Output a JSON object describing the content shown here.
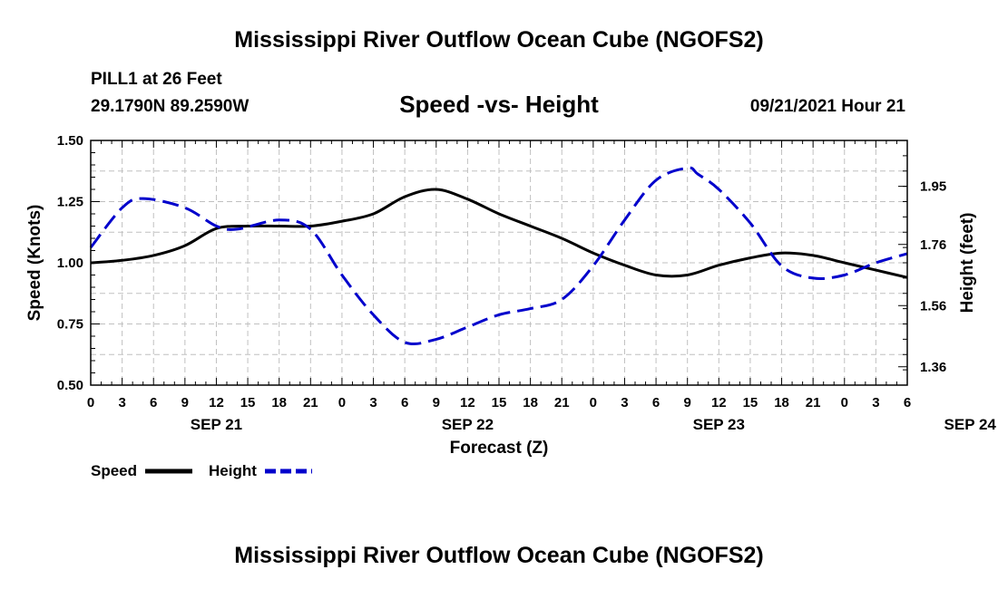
{
  "header": {
    "title": "Mississippi River Outflow Ocean Cube (NGOFS2)",
    "station": "PILL1 at 26 Feet",
    "coordinates": "29.1790N  89.2590W",
    "subtitle": "Speed -vs- Height",
    "datetime": "09/21/2021 Hour 21"
  },
  "footer": {
    "title": "Mississippi River Outflow Ocean Cube (NGOFS2)"
  },
  "chart_data": {
    "type": "line",
    "title": "Speed -vs- Height",
    "xlabel": "Forecast (Z)",
    "ylabel": "Speed (Knots)",
    "y2label": "Height (feet)",
    "x_hour_ticks": [
      "0",
      "3",
      "6",
      "9",
      "12",
      "15",
      "18",
      "21",
      "0",
      "3",
      "6",
      "9",
      "12",
      "15",
      "18",
      "21",
      "0",
      "3",
      "6",
      "9",
      "12",
      "15",
      "18",
      "21",
      "0",
      "3",
      "6"
    ],
    "date_labels": [
      {
        "label": "SEP 21",
        "hour": 12
      },
      {
        "label": "SEP 22",
        "hour": 36
      },
      {
        "label": "SEP 23",
        "hour": 60
      },
      {
        "label": "SEP 24",
        "hour": 84
      }
    ],
    "xlim": [
      0,
      78
    ],
    "ylim": [
      0.5,
      1.5
    ],
    "yticks": [
      "0.50",
      "0.75",
      "1.00",
      "1.25",
      "1.50"
    ],
    "y2lim": [
      1.3,
      2.1
    ],
    "y2ticks": [
      "1.36",
      "1.56",
      "1.76",
      "1.95"
    ],
    "grid": true,
    "series": [
      {
        "name": "Speed",
        "axis": "left",
        "color": "#000000",
        "dash": "solid",
        "x": [
          0,
          3,
          6,
          9,
          12,
          15,
          18,
          21,
          24,
          27,
          30,
          33,
          36,
          39,
          42,
          45,
          48,
          51,
          54,
          57,
          60,
          63,
          66,
          69,
          72,
          75,
          78
        ],
        "y": [
          1.0,
          1.01,
          1.03,
          1.07,
          1.14,
          1.15,
          1.15,
          1.15,
          1.17,
          1.2,
          1.27,
          1.3,
          1.26,
          1.2,
          1.15,
          1.1,
          1.04,
          0.99,
          0.95,
          0.95,
          0.99,
          1.02,
          1.04,
          1.03,
          1.0,
          0.97,
          0.94
        ]
      },
      {
        "name": "Height",
        "axis": "right",
        "color": "#0000cc",
        "dash": "dashed",
        "x": [
          0,
          3,
          5,
          9,
          12,
          14,
          18,
          21,
          24,
          27,
          30,
          33,
          36,
          39,
          42,
          45,
          48,
          51,
          54,
          57,
          58,
          60,
          63,
          66,
          69,
          72,
          75,
          78
        ],
        "y": [
          1.75,
          1.88,
          1.91,
          1.88,
          1.82,
          1.81,
          1.84,
          1.81,
          1.66,
          1.53,
          1.44,
          1.45,
          1.49,
          1.53,
          1.55,
          1.58,
          1.69,
          1.84,
          1.97,
          2.01,
          1.99,
          1.94,
          1.83,
          1.69,
          1.65,
          1.66,
          1.7,
          1.73
        ]
      }
    ],
    "legend": [
      {
        "label": "Speed",
        "series": "Speed"
      },
      {
        "label": "Height",
        "series": "Height"
      }
    ],
    "legend_position": "bottom-left"
  }
}
